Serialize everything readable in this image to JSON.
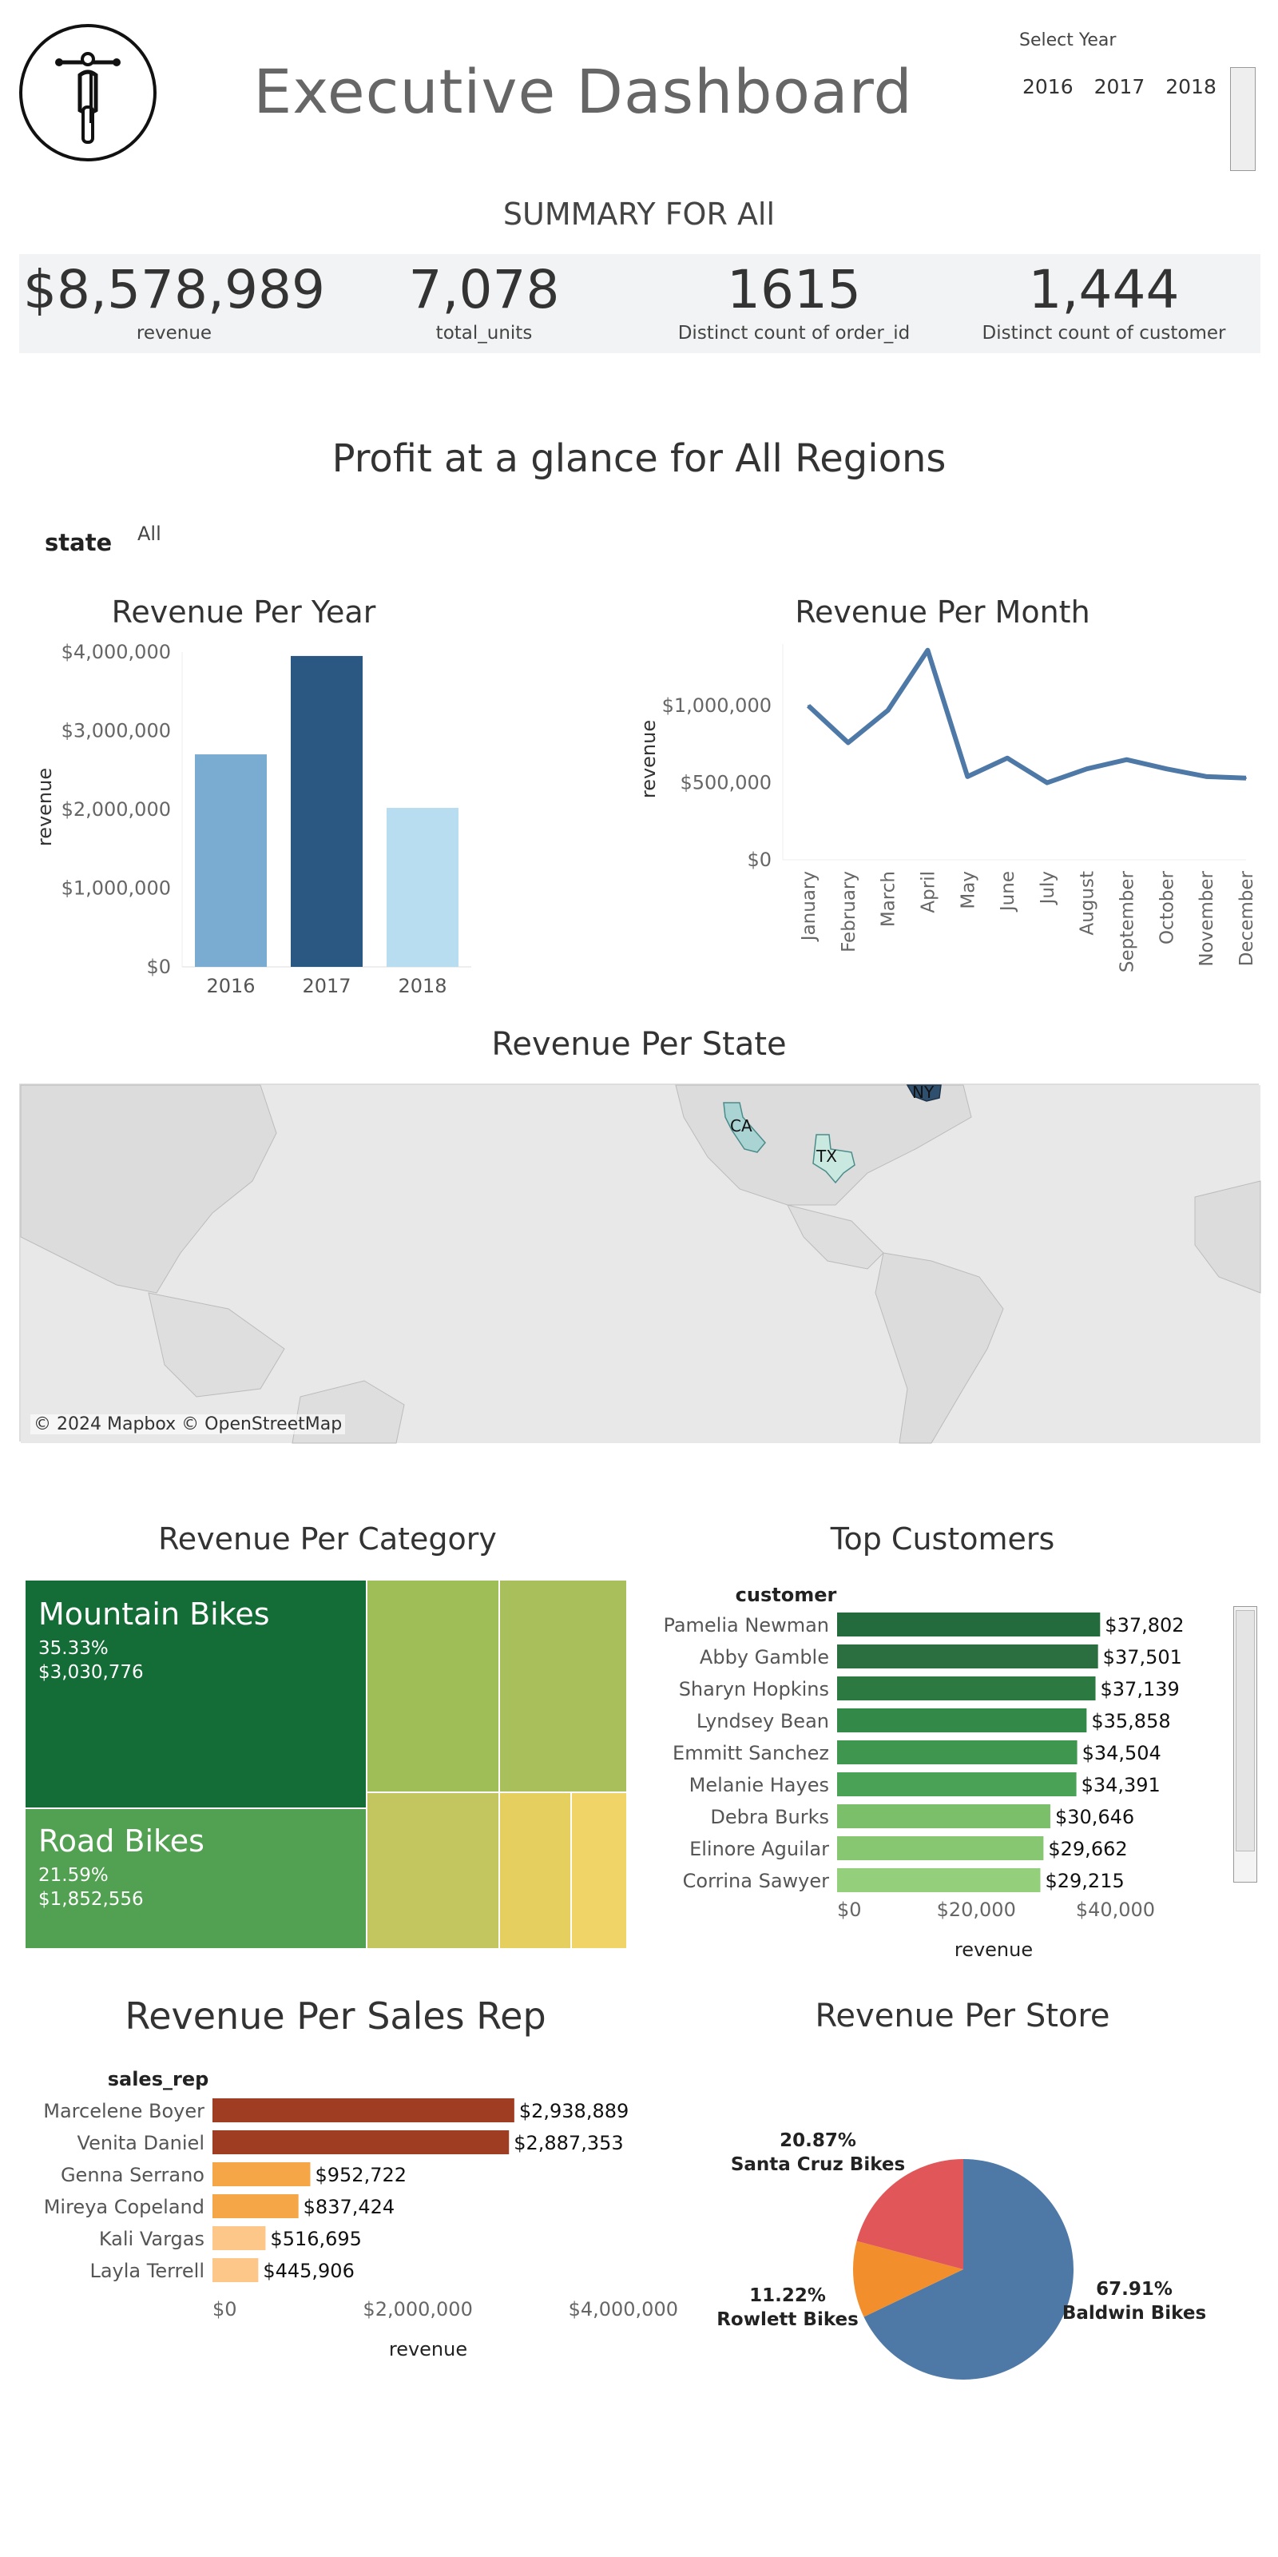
{
  "header": {
    "title": "Executive Dashboard",
    "select_year_label": "Select Year",
    "years": [
      "2016",
      "2017",
      "2018"
    ]
  },
  "summary": {
    "heading": "SUMMARY FOR All",
    "kpis": [
      {
        "value": "$8,578,989",
        "label": "revenue"
      },
      {
        "value": "7,078",
        "label": "total_units"
      },
      {
        "value": "1615",
        "label": "Distinct count of order_id"
      },
      {
        "value": "1,444",
        "label": "Distinct count of customer"
      }
    ]
  },
  "profit_heading": "Profit at a glance for All Regions",
  "state_filter": {
    "label": "state",
    "value": "All"
  },
  "map": {
    "title": "Revenue Per State",
    "credit": "© 2024 Mapbox © OpenStreetMap",
    "states": [
      "CA",
      "TX",
      "NY"
    ]
  },
  "colors": {
    "year_bars": [
      "#7aabd1",
      "#2b5783",
      "#b9ddf0"
    ],
    "line": "#4e79a7",
    "treemap_dark": "#146c36",
    "treemap_mid": "#52a052",
    "sales_dark": "#9e3d22",
    "sales_orange": "#f5a748",
    "sales_light": "#fdc78a",
    "pie": [
      "#4e79a7",
      "#f28e2b",
      "#e15759"
    ]
  },
  "chart_data": [
    {
      "type": "bar",
      "title": "Revenue Per Year",
      "categories": [
        "2016",
        "2017",
        "2018"
      ],
      "values": [
        2700000,
        3950000,
        2020000
      ],
      "ylabel": "revenue",
      "ylim": [
        0,
        4000000
      ],
      "yticks": [
        "$0",
        "$1,000,000",
        "$2,000,000",
        "$3,000,000",
        "$4,000,000"
      ]
    },
    {
      "type": "line",
      "title": "Revenue Per Month",
      "categories": [
        "January",
        "February",
        "March",
        "April",
        "May",
        "June",
        "July",
        "August",
        "September",
        "October",
        "November",
        "December"
      ],
      "values": [
        1000000,
        760000,
        970000,
        1360000,
        540000,
        660000,
        500000,
        590000,
        650000,
        590000,
        540000,
        530000
      ],
      "ylabel": "revenue",
      "ylim": [
        0,
        1400000
      ],
      "yticks": [
        "$0",
        "$500,000",
        "$1,000,000"
      ]
    },
    {
      "type": "treemap",
      "title": "Revenue Per Category",
      "labeled": [
        {
          "name": "Mountain Bikes",
          "pct": "35.33%",
          "value": "$3,030,776"
        },
        {
          "name": "Road Bikes",
          "pct": "21.59%",
          "value": "$1,852,556"
        }
      ]
    },
    {
      "type": "bar",
      "title": "Top Customers",
      "header": "customer",
      "categories": [
        "Pamelia Newman",
        "Abby Gamble",
        "Sharyn Hopkins",
        "Lyndsey Bean",
        "Emmitt Sanchez",
        "Melanie Hayes",
        "Debra Burks",
        "Elinore Aguilar",
        "Corrina Sawyer"
      ],
      "values": [
        37802,
        37501,
        37139,
        35858,
        34504,
        34391,
        30646,
        29662,
        29215
      ],
      "labels": [
        "$37,802",
        "$37,501",
        "$37,139",
        "$35,858",
        "$34,504",
        "$34,391",
        "$30,646",
        "$29,662",
        "$29,215"
      ],
      "xlabel": "revenue",
      "xlim": [
        0,
        45000
      ],
      "xticks": [
        "$0",
        "$20,000",
        "$40,000"
      ]
    },
    {
      "type": "bar",
      "title": "Revenue Per Sales Rep",
      "header": "sales_rep",
      "categories": [
        "Marcelene Boyer",
        "Venita Daniel",
        "Genna Serrano",
        "Mireya Copeland",
        "Kali Vargas",
        "Layla Terrell"
      ],
      "values": [
        2938889,
        2887353,
        952722,
        837424,
        516695,
        445906
      ],
      "labels": [
        "$2,938,889",
        "$2,887,353",
        "$952,722",
        "$837,424",
        "$516,695",
        "$445,906"
      ],
      "xlabel": "revenue",
      "xlim": [
        0,
        4200000
      ],
      "xticks": [
        "$0",
        "$2,000,000",
        "$4,000,000"
      ]
    },
    {
      "type": "pie",
      "title": "Revenue Per Store",
      "slices": [
        {
          "name": "Baldwin Bikes",
          "pct": "67.91%",
          "value": 67.91
        },
        {
          "name": "Rowlett Bikes",
          "pct": "11.22%",
          "value": 11.22
        },
        {
          "name": "Santa Cruz Bikes",
          "pct": "20.87%",
          "value": 20.87
        }
      ]
    }
  ]
}
